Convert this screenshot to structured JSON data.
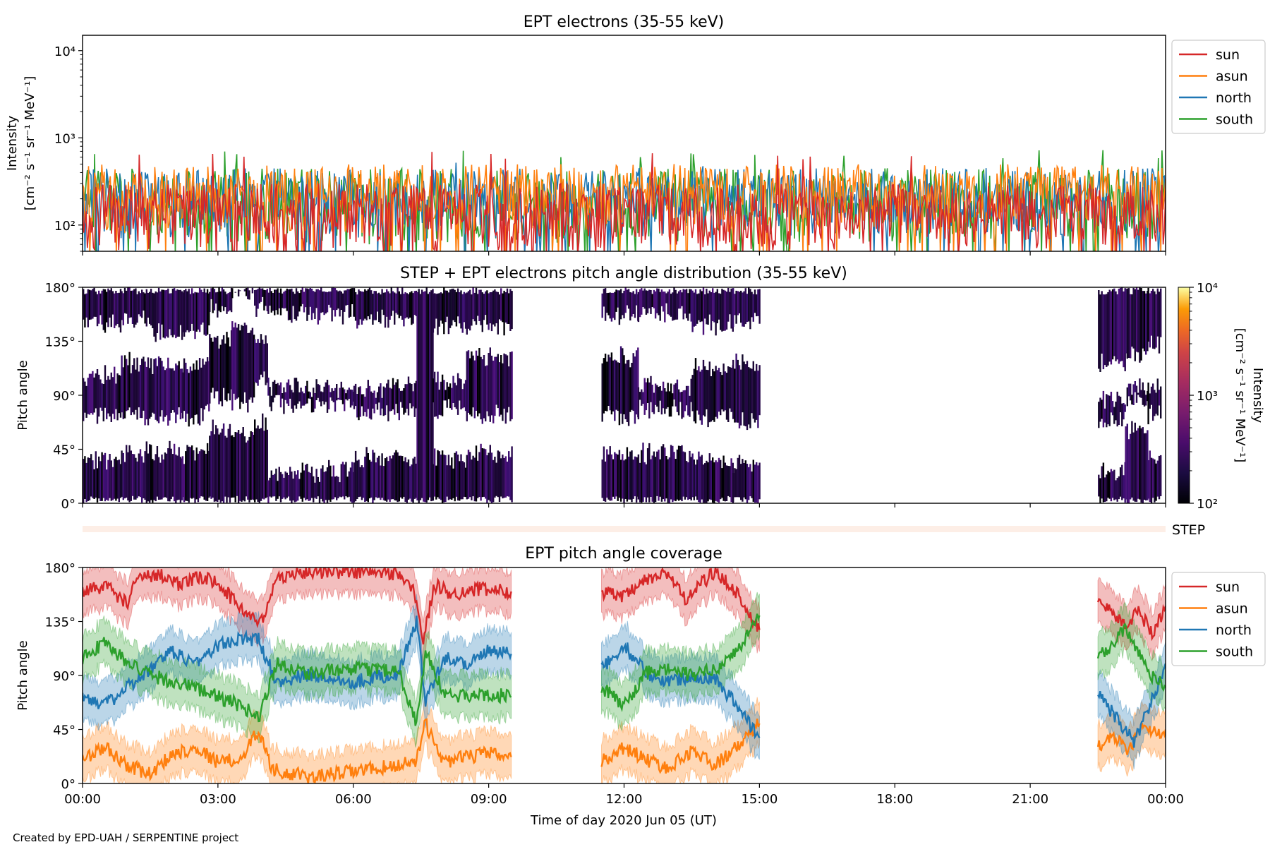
{
  "figure": {
    "credit": "Created by EPD-UAH / SERPENTINE project",
    "step_strip_label": "STEP",
    "xlabel": "Time of day 2020 Jun 05 (UT)"
  },
  "chart_data": [
    {
      "type": "line",
      "title": "EPT electrons (35-55 keV)",
      "ylabel_line1": "Intensity",
      "ylabel_line2": "[cm⁻² s⁻¹ sr⁻¹ MeV⁻¹]",
      "yscale": "log",
      "ylim": [
        50,
        15000
      ],
      "yticks": [
        {
          "value": 100,
          "label": "10²"
        },
        {
          "value": 1000,
          "label": "10³"
        },
        {
          "value": 10000,
          "label": "10⁴"
        }
      ],
      "xlim_hours": [
        0,
        24
      ],
      "legend_position": "outside-right",
      "series": [
        {
          "name": "sun",
          "color": "#d62728",
          "typical_range": [
            50,
            300
          ],
          "max_spike": 700
        },
        {
          "name": "asun",
          "color": "#ff7f0e",
          "typical_range": [
            80,
            500
          ],
          "max_spike": 500
        },
        {
          "name": "north",
          "color": "#1f77b4",
          "typical_range": [
            70,
            450
          ],
          "max_spike": 560
        },
        {
          "name": "south",
          "color": "#2ca02c",
          "typical_range": [
            60,
            450
          ],
          "max_spike": 730
        }
      ],
      "z_order_bottom_to_top": [
        "south",
        "north",
        "asun",
        "sun"
      ]
    },
    {
      "type": "heatmap",
      "title": "STEP + EPT electrons pitch angle distribution (35-55 keV)",
      "ylabel": "Pitch angle",
      "ylim": [
        0,
        180
      ],
      "yticks": [
        {
          "value": 0,
          "label": "0°"
        },
        {
          "value": 45,
          "label": "45°"
        },
        {
          "value": 90,
          "label": "90°"
        },
        {
          "value": 135,
          "label": "135°"
        },
        {
          "value": 180,
          "label": "180°"
        }
      ],
      "xlim_hours": [
        0,
        24
      ],
      "colorbar": {
        "label_line1": "Intensity",
        "label_line2": "[cm⁻² s⁻¹ sr⁻¹ MeV⁻¹]",
        "scale": "log",
        "range": [
          100,
          10000
        ],
        "ticks": [
          {
            "value": 100,
            "label": "10²"
          },
          {
            "value": 1000,
            "label": "10³"
          },
          {
            "value": 10000,
            "label": "10⁴"
          }
        ],
        "colormap": "inferno"
      },
      "data_segments_hours": [
        [
          0.0,
          0.85
        ],
        [
          0.85,
          1.5
        ],
        [
          1.5,
          2.2
        ],
        [
          2.2,
          2.8
        ],
        [
          2.8,
          3.3
        ],
        [
          3.3,
          3.8
        ],
        [
          3.8,
          4.1
        ],
        [
          4.1,
          6.0
        ],
        [
          6.0,
          7.4
        ],
        [
          7.4,
          7.75
        ],
        [
          7.75,
          8.5
        ],
        [
          8.5,
          9.5
        ],
        [
          11.5,
          12.3
        ],
        [
          12.3,
          13.5
        ],
        [
          13.5,
          14.4
        ],
        [
          14.4,
          15.0
        ],
        [
          22.5,
          23.1
        ],
        [
          23.1,
          23.6
        ],
        [
          23.6,
          23.9
        ]
      ],
      "empty_regions_deg_by_segment": [
        [
          [
            40,
            70
          ],
          [
            110,
            145
          ]
        ],
        [
          [
            45,
            70
          ],
          [
            120,
            150
          ]
        ],
        [
          [
            45,
            70
          ],
          [
            120,
            140
          ]
        ],
        [
          [
            45,
            70
          ],
          [
            120,
            140
          ]
        ],
        [
          [
            65,
            85
          ],
          [
            140,
            160
          ]
        ],
        [
          [
            60,
            80
          ],
          [
            150,
            170
          ]
        ],
        [
          [
            70,
            100
          ],
          [
            140,
            160
          ]
        ],
        [
          [
            30,
            80
          ],
          [
            100,
            155
          ]
        ],
        [
          [
            40,
            75
          ],
          [
            100,
            150
          ]
        ],
        [
          [
            0,
            0
          ],
          [
            0,
            0
          ]
        ],
        [
          [
            40,
            75
          ],
          [
            105,
            145
          ]
        ],
        [
          [
            45,
            70
          ],
          [
            125,
            145
          ]
        ],
        [
          [
            45,
            70
          ],
          [
            125,
            155
          ]
        ],
        [
          [
            45,
            75
          ],
          [
            100,
            155
          ]
        ],
        [
          [
            40,
            70
          ],
          [
            115,
            145
          ]
        ],
        [
          [
            35,
            65
          ],
          [
            120,
            150
          ]
        ],
        [
          [
            30,
            65
          ],
          [
            90,
            115
          ]
        ],
        [
          [
            65,
            85
          ],
          [
            100,
            120
          ]
        ],
        [
          [
            40,
            70
          ],
          [
            100,
            130
          ]
        ]
      ]
    },
    {
      "type": "line",
      "title": "EPT pitch angle coverage",
      "ylabel": "Pitch angle",
      "ylim": [
        0,
        180
      ],
      "yticks": [
        {
          "value": 0,
          "label": "0°"
        },
        {
          "value": 45,
          "label": "45°"
        },
        {
          "value": 90,
          "label": "90°"
        },
        {
          "value": 135,
          "label": "135°"
        },
        {
          "value": 180,
          "label": "180°"
        }
      ],
      "xlim_hours": [
        0,
        24
      ],
      "xticks": [
        {
          "value": 0,
          "label": "00:00"
        },
        {
          "value": 3,
          "label": "03:00"
        },
        {
          "value": 6,
          "label": "06:00"
        },
        {
          "value": 9,
          "label": "09:00"
        },
        {
          "value": 12,
          "label": "12:00"
        },
        {
          "value": 15,
          "label": "15:00"
        },
        {
          "value": 18,
          "label": "18:00"
        },
        {
          "value": 21,
          "label": "21:00"
        },
        {
          "value": 24,
          "label": "00:00"
        }
      ],
      "legend_position": "outside-right",
      "band_halfwidth_deg": 18,
      "series": [
        {
          "name": "sun",
          "color": "#d62728",
          "x": [
            0.0,
            0.5,
            1.0,
            1.2,
            1.7,
            2.2,
            2.6,
            3.0,
            3.4,
            3.7,
            4.0,
            4.3,
            5.0,
            6.0,
            7.0,
            7.35,
            7.55,
            7.8,
            8.2,
            8.8,
            9.5,
            null,
            11.5,
            12.0,
            12.5,
            13.0,
            13.4,
            13.6,
            14.0,
            14.4,
            14.8,
            15.0,
            null,
            22.5,
            22.8,
            23.1,
            23.4,
            23.7,
            24.0
          ],
          "y": [
            160,
            165,
            150,
            170,
            175,
            165,
            172,
            168,
            150,
            140,
            135,
            172,
            177,
            176,
            175,
            160,
            120,
            165,
            158,
            162,
            160,
            null,
            160,
            155,
            170,
            175,
            150,
            165,
            175,
            165,
            140,
            128,
            null,
            150,
            145,
            130,
            145,
            125,
            148
          ]
        },
        {
          "name": "asun",
          "color": "#ff7f0e",
          "x": [
            0.0,
            0.5,
            1.0,
            1.5,
            2.0,
            2.5,
            3.0,
            3.5,
            3.9,
            4.2,
            5.0,
            6.0,
            7.0,
            7.4,
            7.6,
            8.0,
            8.5,
            9.0,
            9.5,
            null,
            11.5,
            12.0,
            12.5,
            13.0,
            13.5,
            14.0,
            14.5,
            15.0,
            null,
            22.5,
            22.8,
            23.2,
            23.5,
            23.8,
            24.0
          ],
          "y": [
            20,
            30,
            15,
            8,
            25,
            30,
            18,
            20,
            45,
            12,
            5,
            10,
            15,
            20,
            50,
            18,
            22,
            25,
            22,
            null,
            18,
            30,
            20,
            12,
            28,
            15,
            30,
            50,
            null,
            30,
            40,
            28,
            50,
            40,
            45
          ]
        },
        {
          "name": "north",
          "color": "#1f77b4",
          "x": [
            0.0,
            0.5,
            1.0,
            1.5,
            2.0,
            2.5,
            3.0,
            3.5,
            3.9,
            4.3,
            5.0,
            6.0,
            7.0,
            7.4,
            7.6,
            8.0,
            8.5,
            9.0,
            9.5,
            null,
            11.5,
            12.0,
            12.5,
            13.0,
            13.5,
            14.0,
            14.5,
            15.0,
            null,
            22.5,
            22.8,
            23.0,
            23.3,
            23.6,
            23.9,
            24.0
          ],
          "y": [
            75,
            65,
            80,
            95,
            110,
            100,
            115,
            120,
            120,
            85,
            90,
            85,
            92,
            135,
            70,
            105,
            100,
            110,
            108,
            null,
            95,
            115,
            92,
            85,
            90,
            88,
            65,
            38,
            null,
            75,
            60,
            50,
            35,
            60,
            90,
            100
          ]
        },
        {
          "name": "south",
          "color": "#2ca02c",
          "x": [
            0.0,
            0.5,
            1.0,
            1.5,
            2.0,
            2.5,
            3.0,
            3.5,
            3.9,
            4.3,
            5.0,
            6.0,
            7.0,
            7.4,
            7.6,
            8.0,
            8.5,
            9.0,
            9.5,
            null,
            11.5,
            12.0,
            12.5,
            13.0,
            13.5,
            14.0,
            14.5,
            15.0,
            null,
            22.5,
            22.8,
            23.1,
            23.4,
            23.7,
            24.0
          ],
          "y": [
            105,
            118,
            100,
            90,
            85,
            80,
            72,
            65,
            55,
            100,
            92,
            95,
            95,
            50,
            110,
            75,
            72,
            75,
            72,
            null,
            80,
            65,
            92,
            95,
            90,
            95,
            110,
            140,
            null,
            105,
            115,
            130,
            110,
            90,
            80
          ]
        }
      ]
    }
  ]
}
